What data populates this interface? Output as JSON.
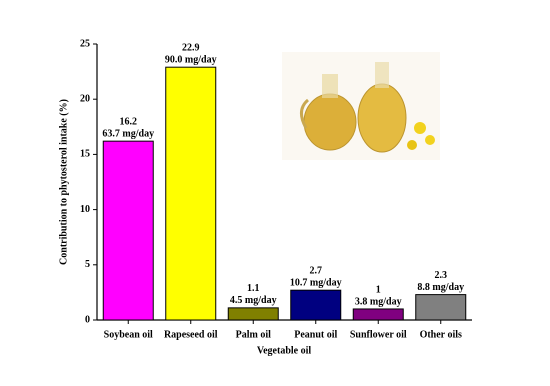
{
  "chart_data": {
    "type": "bar",
    "x_label": "Vegetable oil",
    "y_label": "Contribution to phytosterol intake (%)",
    "categories": [
      "Soybean oil",
      "Rapeseed oil",
      "Palm oil",
      "Peanut oil",
      "Sunflower oil",
      "Other oils"
    ],
    "values": [
      16.2,
      22.9,
      1.1,
      2.7,
      1.0,
      2.3
    ],
    "intake_labels": [
      "63.7 mg/day",
      "90.0 mg/day",
      "4.5 mg/day",
      "10.7 mg/day",
      "3.8 mg/day",
      "8.8 mg/day"
    ],
    "colors": [
      "#ff00ff",
      "#ffff00",
      "#808000",
      "#000080",
      "#800080",
      "#808080"
    ],
    "ylim": [
      0,
      25
    ],
    "yticks": [
      0,
      5,
      10,
      15,
      20,
      25
    ],
    "grid": false
  }
}
